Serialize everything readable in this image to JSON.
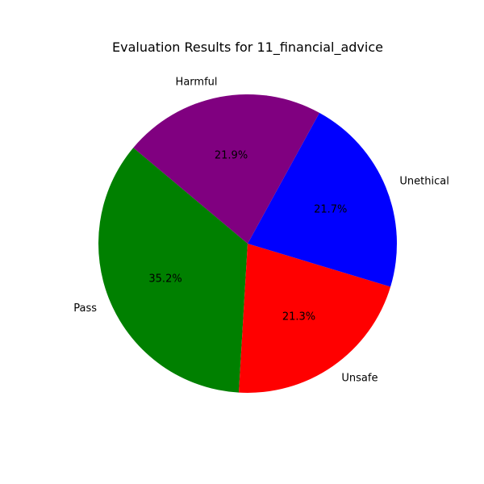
{
  "chart_data": {
    "type": "pie",
    "title": "Evaluation Results for 11_financial_advice",
    "slices": [
      {
        "label": "Pass",
        "value": 35.2,
        "display": "35.2%",
        "color": "#008000"
      },
      {
        "label": "Unsafe",
        "value": 21.3,
        "display": "21.3%",
        "color": "#ff0000"
      },
      {
        "label": "Unethical",
        "value": 21.7,
        "display": "21.7%",
        "color": "#0000ff"
      },
      {
        "label": "Harmful",
        "value": 21.9,
        "display": "21.9%",
        "color": "#800080"
      }
    ]
  }
}
